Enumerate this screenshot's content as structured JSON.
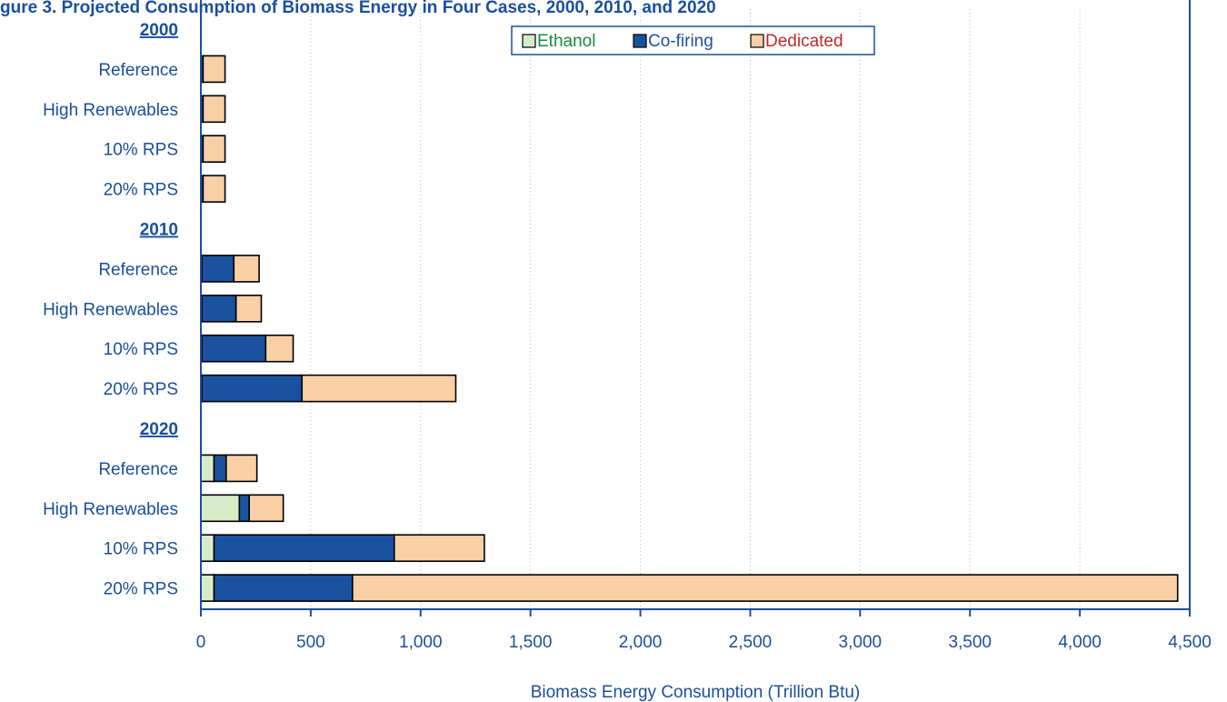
{
  "chart_data": {
    "type": "bar",
    "orientation": "horizontal",
    "stacked": true,
    "title": "gure 3. Projected Consumption of Biomass Energy in Four Cases, 2000, 2010, and 2020",
    "xlabel": "Biomass Energy Consumption (Trillion Btu)",
    "ylabel": "",
    "xlim": [
      0,
      4500
    ],
    "xticks": [
      0,
      500,
      1000,
      1500,
      2000,
      2500,
      3000,
      3500,
      4000,
      4500
    ],
    "xtick_labels": [
      "0",
      "500",
      "1,000",
      "1,500",
      "2,000",
      "2,500",
      "3,000",
      "3,500",
      "4,000",
      "4,500"
    ],
    "grid": "vertical-dotted",
    "legend_position": "top-center",
    "groups": [
      {
        "label": "2000",
        "categories": [
          "Reference",
          "High Renewables",
          "10% RPS",
          "20% RPS"
        ]
      },
      {
        "label": "2010",
        "categories": [
          "Reference",
          "High Renewables",
          "10% RPS",
          "20% RPS"
        ]
      },
      {
        "label": "2020",
        "categories": [
          "Reference",
          "High Renewables",
          "10% RPS",
          "20% RPS"
        ]
      }
    ],
    "series": [
      {
        "name": "Ethanol",
        "color": "#d6ecc8",
        "legend_text_color": "#1a8a3a",
        "values": [
          0,
          0,
          0,
          0,
          5,
          5,
          5,
          5,
          60,
          175,
          60,
          60
        ]
      },
      {
        "name": "Co-firing",
        "color": "#1a52a0",
        "legend_text_color": "#1a52a0",
        "values": [
          10,
          10,
          10,
          10,
          145,
          155,
          290,
          455,
          55,
          45,
          820,
          630
        ]
      },
      {
        "name": "Dedicated",
        "color": "#f9cfa6",
        "legend_text_color": "#c0282a",
        "values": [
          100,
          100,
          100,
          100,
          115,
          115,
          125,
          700,
          140,
          155,
          410,
          3755
        ]
      }
    ]
  },
  "colors": {
    "axis": "#1a4f9c",
    "label_text": "#1a4f9c",
    "grid": "#b8b8b8",
    "bar_outline": "#000000"
  }
}
